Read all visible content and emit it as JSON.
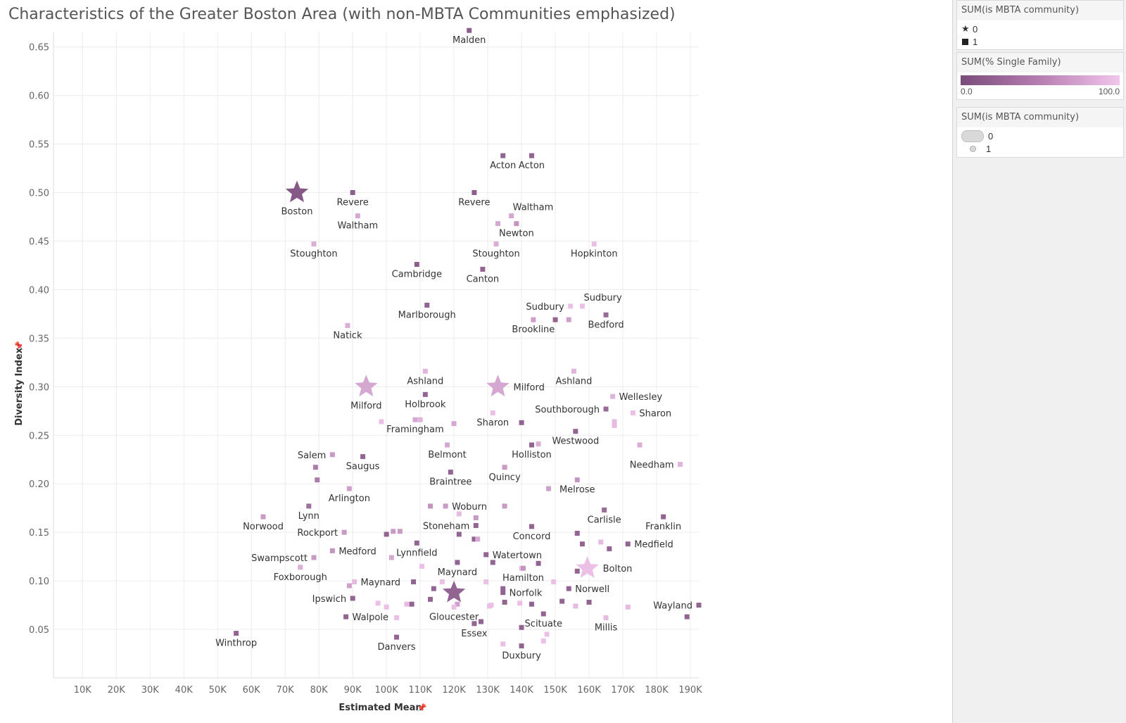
{
  "title": "Characteristics of the Greater Boston Area (with non-MBTA Communities emphasized)",
  "legends": {
    "shape": {
      "title": "SUM(is MBTA community)",
      "items": [
        {
          "symbol": "★",
          "label": "0"
        },
        {
          "symbol": "■",
          "label": "1"
        }
      ]
    },
    "color": {
      "title": "SUM(% Single Family)",
      "min_label": "0.0",
      "max_label": "100.0",
      "low_color": "#7a4c7a",
      "high_color": "#f2c6ec"
    },
    "size": {
      "title": "SUM(is MBTA community)",
      "items": [
        {
          "label": "0"
        },
        {
          "label": "1"
        }
      ]
    }
  },
  "chart_data": {
    "type": "scatter",
    "xlabel": "Estimated Mean",
    "ylabel": "Diversity Index",
    "xlim": [
      1400,
      192500
    ],
    "ylim": [
      0.0,
      0.665
    ],
    "x_ticks": [
      10000,
      20000,
      30000,
      40000,
      50000,
      60000,
      70000,
      80000,
      90000,
      100000,
      110000,
      120000,
      130000,
      140000,
      150000,
      160000,
      170000,
      180000,
      190000
    ],
    "x_tick_labels": [
      "10K",
      "20K",
      "30K",
      "40K",
      "50K",
      "60K",
      "70K",
      "80K",
      "90K",
      "100K",
      "110K",
      "120K",
      "130K",
      "140K",
      "150K",
      "160K",
      "170K",
      "180K",
      "190K"
    ],
    "y_ticks": [
      0.05,
      0.1,
      0.15,
      0.2,
      0.25,
      0.3,
      0.35,
      0.4,
      0.45,
      0.5,
      0.55,
      0.6,
      0.65
    ],
    "y_tick_labels": [
      "0.05",
      "0.10",
      "0.15",
      "0.20",
      "0.25",
      "0.30",
      "0.35",
      "0.40",
      "0.45",
      "0.50",
      "0.55",
      "0.60",
      "0.65"
    ],
    "grid": true,
    "color_range": [
      "#7a4c7a",
      "#f2c6ec"
    ],
    "points": [
      {
        "label": "Boston",
        "x": 73500,
        "y": 0.5,
        "c": 10,
        "star": true,
        "la": "below"
      },
      {
        "label": "Revere",
        "x": 90000,
        "y": 0.5,
        "c": 15,
        "la": "below"
      },
      {
        "label": "Waltham",
        "x": 91500,
        "y": 0.476,
        "c": 75,
        "la": "below"
      },
      {
        "label": "Stoughton",
        "x": 78500,
        "y": 0.447,
        "c": 80,
        "la": "below"
      },
      {
        "label": "Malden",
        "x": 124500,
        "y": 0.667,
        "c": 15,
        "la": "below"
      },
      {
        "label": "Acton",
        "x": 134500,
        "y": 0.538,
        "c": 20,
        "la": "below"
      },
      {
        "label": "Acton",
        "x": 143000,
        "y": 0.538,
        "c": 20,
        "la": "below"
      },
      {
        "label": "Revere",
        "x": 126000,
        "y": 0.5,
        "c": 15,
        "la": "below"
      },
      {
        "label": "Waltham",
        "x": 137000,
        "y": 0.476,
        "c": 75,
        "la": "above-right"
      },
      {
        "label": "",
        "x": 133000,
        "y": 0.468,
        "c": 75
      },
      {
        "label": "Newton",
        "x": 138500,
        "y": 0.468,
        "c": 60,
        "la": "below"
      },
      {
        "label": "Stoughton",
        "x": 132500,
        "y": 0.447,
        "c": 80,
        "la": "below"
      },
      {
        "label": "Hopkinton",
        "x": 161500,
        "y": 0.447,
        "c": 95,
        "la": "below"
      },
      {
        "label": "Cambridge",
        "x": 109000,
        "y": 0.426,
        "c": 15,
        "la": "below"
      },
      {
        "label": "Canton",
        "x": 128500,
        "y": 0.421,
        "c": 20,
        "la": "below"
      },
      {
        "label": "Marlborough",
        "x": 112000,
        "y": 0.384,
        "c": 20,
        "la": "below"
      },
      {
        "label": "Sudbury",
        "x": 154500,
        "y": 0.383,
        "c": 95,
        "la": "left"
      },
      {
        "label": "Sudbury",
        "x": 158000,
        "y": 0.383,
        "c": 95,
        "la": "above-right"
      },
      {
        "label": "Bedford",
        "x": 165000,
        "y": 0.374,
        "c": 25,
        "la": "below"
      },
      {
        "label": "Brookline",
        "x": 143500,
        "y": 0.369,
        "c": 70,
        "la": "below"
      },
      {
        "label": "",
        "x": 150000,
        "y": 0.369,
        "c": 20
      },
      {
        "label": "",
        "x": 154000,
        "y": 0.369,
        "c": 70
      },
      {
        "label": "Natick",
        "x": 88500,
        "y": 0.363,
        "c": 80,
        "la": "below"
      },
      {
        "label": "Milford",
        "x": 94000,
        "y": 0.3,
        "c": 75,
        "star": true,
        "la": "below"
      },
      {
        "label": "Milford",
        "x": 133000,
        "y": 0.3,
        "c": 75,
        "star": true,
        "la": "right"
      },
      {
        "label": "Ashland",
        "x": 111500,
        "y": 0.316,
        "c": 85,
        "la": "below"
      },
      {
        "label": "Ashland",
        "x": 155500,
        "y": 0.316,
        "c": 85,
        "la": "below"
      },
      {
        "label": "Holbrook",
        "x": 111500,
        "y": 0.292,
        "c": 20,
        "la": "below"
      },
      {
        "label": "Wellesley",
        "x": 167000,
        "y": 0.29,
        "c": 85,
        "la": "right"
      },
      {
        "label": "Southborough",
        "x": 165000,
        "y": 0.277,
        "c": 25,
        "la": "left"
      },
      {
        "label": "Sharon",
        "x": 173000,
        "y": 0.273,
        "c": 95,
        "la": "right"
      },
      {
        "label": "Sharon",
        "x": 131500,
        "y": 0.273,
        "c": 95,
        "la": "below"
      },
      {
        "label": "Framingham",
        "x": 108500,
        "y": 0.266,
        "c": 75,
        "la": "below"
      },
      {
        "label": "",
        "x": 110000,
        "y": 0.266,
        "c": 85
      },
      {
        "label": "",
        "x": 98500,
        "y": 0.264,
        "c": 95
      },
      {
        "label": "",
        "x": 120000,
        "y": 0.262,
        "c": 75
      },
      {
        "label": "",
        "x": 140000,
        "y": 0.263,
        "c": 20
      },
      {
        "label": "",
        "x": 167500,
        "y": 0.264,
        "c": 90
      },
      {
        "label": "",
        "x": 167500,
        "y": 0.26,
        "c": 90
      },
      {
        "label": "Westwood",
        "x": 156000,
        "y": 0.254,
        "c": 20,
        "la": "below"
      },
      {
        "label": "Belmont",
        "x": 118000,
        "y": 0.24,
        "c": 75,
        "la": "below"
      },
      {
        "label": "Holliston",
        "x": 143000,
        "y": 0.24,
        "c": 20,
        "la": "below"
      },
      {
        "label": "",
        "x": 145000,
        "y": 0.241,
        "c": 80
      },
      {
        "label": "",
        "x": 175000,
        "y": 0.24,
        "c": 80
      },
      {
        "label": "Salem",
        "x": 84000,
        "y": 0.23,
        "c": 65,
        "la": "left"
      },
      {
        "label": "Saugus",
        "x": 93000,
        "y": 0.228,
        "c": 20,
        "la": "below"
      },
      {
        "label": "Needham",
        "x": 187000,
        "y": 0.22,
        "c": 85,
        "la": "left"
      },
      {
        "label": "",
        "x": 79000,
        "y": 0.217,
        "c": 40
      },
      {
        "label": "Quincy",
        "x": 135000,
        "y": 0.217,
        "c": 65,
        "la": "below"
      },
      {
        "label": "Braintree",
        "x": 119000,
        "y": 0.212,
        "c": 20,
        "la": "below"
      },
      {
        "label": "",
        "x": 79500,
        "y": 0.204,
        "c": 40
      },
      {
        "label": "Melrose",
        "x": 156500,
        "y": 0.204,
        "c": 60,
        "la": "below"
      },
      {
        "label": "Arlington",
        "x": 89000,
        "y": 0.195,
        "c": 70,
        "la": "below"
      },
      {
        "label": "",
        "x": 148000,
        "y": 0.195,
        "c": 70
      },
      {
        "label": "Lynn",
        "x": 77000,
        "y": 0.177,
        "c": 30,
        "la": "below"
      },
      {
        "label": "",
        "x": 113000,
        "y": 0.177,
        "c": 60
      },
      {
        "label": "Woburn",
        "x": 117500,
        "y": 0.177,
        "c": 65,
        "la": "right"
      },
      {
        "label": "",
        "x": 135000,
        "y": 0.177,
        "c": 65
      },
      {
        "label": "Carlisle",
        "x": 164500,
        "y": 0.173,
        "c": 25,
        "la": "below"
      },
      {
        "label": "",
        "x": 121500,
        "y": 0.169,
        "c": 90
      },
      {
        "label": "Norwood",
        "x": 63500,
        "y": 0.166,
        "c": 65,
        "la": "below"
      },
      {
        "label": "",
        "x": 126500,
        "y": 0.165,
        "c": 65
      },
      {
        "label": "Franklin",
        "x": 182000,
        "y": 0.166,
        "c": 20,
        "la": "below"
      },
      {
        "label": "Stoneham",
        "x": 126500,
        "y": 0.157,
        "c": 20,
        "la": "left"
      },
      {
        "label": "Concord",
        "x": 143000,
        "y": 0.156,
        "c": 20,
        "la": "below"
      },
      {
        "label": "Rockport",
        "x": 87500,
        "y": 0.15,
        "c": 65,
        "la": "left"
      },
      {
        "label": "",
        "x": 100000,
        "y": 0.148,
        "c": 20
      },
      {
        "label": "",
        "x": 102000,
        "y": 0.151,
        "c": 65
      },
      {
        "label": "",
        "x": 104000,
        "y": 0.151,
        "c": 65
      },
      {
        "label": "",
        "x": 121500,
        "y": 0.148,
        "c": 20
      },
      {
        "label": "",
        "x": 126000,
        "y": 0.143,
        "c": 20
      },
      {
        "label": "",
        "x": 127000,
        "y": 0.143,
        "c": 75
      },
      {
        "label": "",
        "x": 156500,
        "y": 0.149,
        "c": 20
      },
      {
        "label": "Medfield",
        "x": 171500,
        "y": 0.138,
        "c": 20,
        "la": "right"
      },
      {
        "label": "",
        "x": 158000,
        "y": 0.138,
        "c": 20
      },
      {
        "label": "",
        "x": 163500,
        "y": 0.14,
        "c": 90
      },
      {
        "label": "",
        "x": 166000,
        "y": 0.133,
        "c": 20
      },
      {
        "label": "Lynnfield",
        "x": 109000,
        "y": 0.139,
        "c": 20,
        "la": "below"
      },
      {
        "label": "Medford",
        "x": 84000,
        "y": 0.131,
        "c": 60,
        "la": "right"
      },
      {
        "label": "Watertown",
        "x": 129500,
        "y": 0.127,
        "c": 20,
        "la": "right"
      },
      {
        "label": "Swampscott",
        "x": 78500,
        "y": 0.124,
        "c": 65,
        "la": "left"
      },
      {
        "label": "",
        "x": 101500,
        "y": 0.124,
        "c": 75
      },
      {
        "label": "Maynard",
        "x": 121000,
        "y": 0.119,
        "c": 20,
        "la": "below"
      },
      {
        "label": "",
        "x": 131500,
        "y": 0.119,
        "c": 20
      },
      {
        "label": "",
        "x": 145000,
        "y": 0.118,
        "c": 20
      },
      {
        "label": "",
        "x": 110500,
        "y": 0.115,
        "c": 95
      },
      {
        "label": "",
        "x": 140000,
        "y": 0.113,
        "c": 95
      },
      {
        "label": "Foxborough",
        "x": 74500,
        "y": 0.114,
        "c": 80,
        "la": "below"
      },
      {
        "label": "Bolton",
        "x": 159500,
        "y": 0.113,
        "c": 95,
        "star": true,
        "la": "right"
      },
      {
        "label": "",
        "x": 156500,
        "y": 0.11,
        "c": 20
      },
      {
        "label": "Hamilton",
        "x": 140500,
        "y": 0.113,
        "c": 60,
        "la": "below"
      },
      {
        "label": "Maynard",
        "x": 90500,
        "y": 0.099,
        "c": 90,
        "la": "right"
      },
      {
        "label": "",
        "x": 108000,
        "y": 0.099,
        "c": 20
      },
      {
        "label": "",
        "x": 116500,
        "y": 0.099,
        "c": 95
      },
      {
        "label": "",
        "x": 129500,
        "y": 0.099,
        "c": 95
      },
      {
        "label": "",
        "x": 149500,
        "y": 0.099,
        "c": 95
      },
      {
        "label": "",
        "x": 89000,
        "y": 0.095,
        "c": 70
      },
      {
        "label": "",
        "x": 114000,
        "y": 0.092,
        "c": 20
      },
      {
        "label": "",
        "x": 134500,
        "y": 0.092,
        "c": 20
      },
      {
        "label": "Norwell",
        "x": 154000,
        "y": 0.092,
        "c": 20,
        "la": "right"
      },
      {
        "label": "",
        "x": 120000,
        "y": 0.088,
        "c": 20,
        "star": true
      },
      {
        "label": "Norfolk",
        "x": 134500,
        "y": 0.088,
        "c": 20,
        "la": "right"
      },
      {
        "label": "Ipswich",
        "x": 90000,
        "y": 0.082,
        "c": 20,
        "la": "left"
      },
      {
        "label": "",
        "x": 113000,
        "y": 0.081,
        "c": 20
      },
      {
        "label": "",
        "x": 135000,
        "y": 0.078,
        "c": 20
      },
      {
        "label": "",
        "x": 139500,
        "y": 0.077,
        "c": 95
      },
      {
        "label": "",
        "x": 143000,
        "y": 0.076,
        "c": 20
      },
      {
        "label": "",
        "x": 152000,
        "y": 0.079,
        "c": 20
      },
      {
        "label": "",
        "x": 160000,
        "y": 0.078,
        "c": 20
      },
      {
        "label": "",
        "x": 97500,
        "y": 0.077,
        "c": 95
      },
      {
        "label": "",
        "x": 100000,
        "y": 0.073,
        "c": 95
      },
      {
        "label": "",
        "x": 106000,
        "y": 0.076,
        "c": 90
      },
      {
        "label": "",
        "x": 107500,
        "y": 0.076,
        "c": 20
      },
      {
        "label": "",
        "x": 121000,
        "y": 0.076,
        "c": 70
      },
      {
        "label": "",
        "x": 130500,
        "y": 0.074,
        "c": 95
      },
      {
        "label": "",
        "x": 131000,
        "y": 0.075,
        "c": 95
      },
      {
        "label": "",
        "x": 156000,
        "y": 0.074,
        "c": 90
      },
      {
        "label": "",
        "x": 171500,
        "y": 0.073,
        "c": 90
      },
      {
        "label": "Wayland",
        "x": 192500,
        "y": 0.075,
        "c": 20,
        "la": "left"
      },
      {
        "label": "Gloucester",
        "x": 120000,
        "y": 0.073,
        "c": 95,
        "la": "below"
      },
      {
        "label": "Walpole",
        "x": 88000,
        "y": 0.063,
        "c": 20,
        "la": "right"
      },
      {
        "label": "",
        "x": 103000,
        "y": 0.062,
        "c": 95
      },
      {
        "label": "Scituate",
        "x": 146500,
        "y": 0.066,
        "c": 20,
        "la": "below"
      },
      {
        "label": "Millis",
        "x": 165000,
        "y": 0.062,
        "c": 90,
        "la": "below"
      },
      {
        "label": "",
        "x": 189000,
        "y": 0.063,
        "c": 20
      },
      {
        "label": "",
        "x": 128000,
        "y": 0.058,
        "c": 20
      },
      {
        "label": "Essex",
        "x": 126000,
        "y": 0.056,
        "c": 20,
        "la": "below"
      },
      {
        "label": "",
        "x": 140000,
        "y": 0.052,
        "c": 20
      },
      {
        "label": "Winthrop",
        "x": 55500,
        "y": 0.046,
        "c": 20,
        "la": "below"
      },
      {
        "label": "",
        "x": 147500,
        "y": 0.045,
        "c": 95
      },
      {
        "label": "Danvers",
        "x": 103000,
        "y": 0.042,
        "c": 20,
        "la": "below"
      },
      {
        "label": "",
        "x": 146500,
        "y": 0.038,
        "c": 95
      },
      {
        "label": "",
        "x": 134500,
        "y": 0.035,
        "c": 95
      },
      {
        "label": "Duxbury",
        "x": 140000,
        "y": 0.033,
        "c": 20,
        "la": "below"
      }
    ]
  }
}
